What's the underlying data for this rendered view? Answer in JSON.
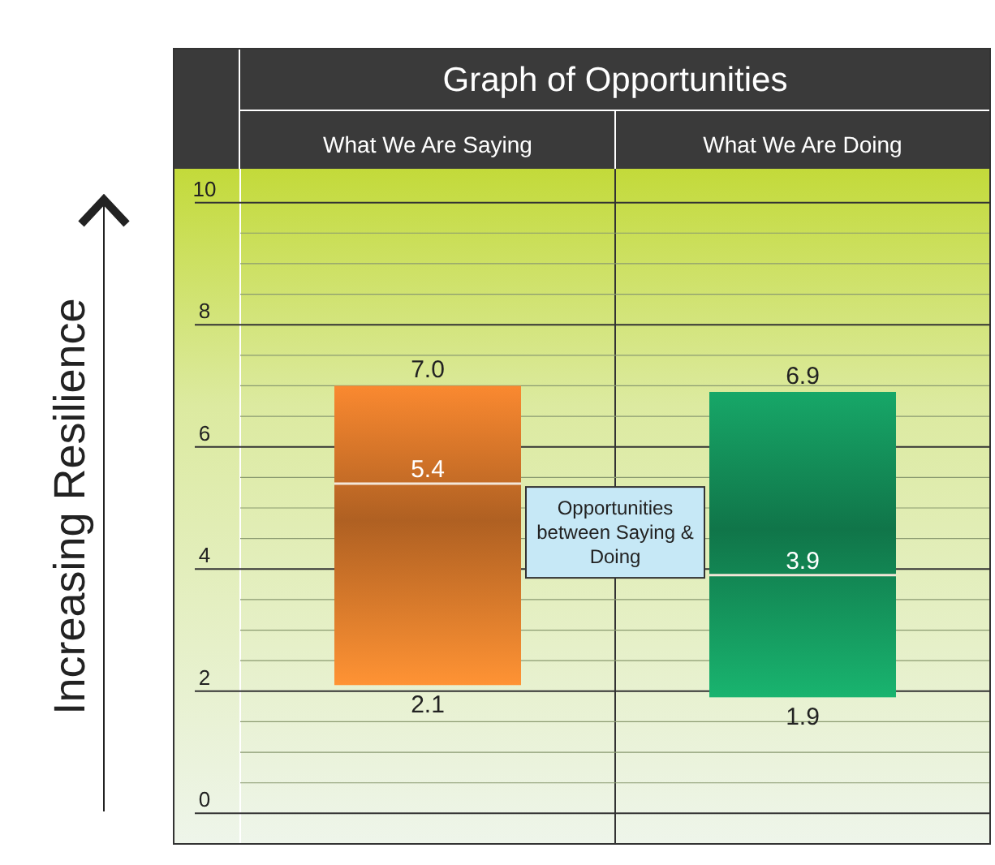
{
  "chart_data": {
    "type": "box",
    "title": "Graph of Opportunities",
    "ylabel": "Increasing Resilience",
    "categories": [
      "What We Are Saying",
      "What We Are Doing"
    ],
    "boxes": [
      {
        "low": 2.1,
        "q1": 2.1,
        "median": 5.4,
        "q3": 7.0,
        "high": 7.0
      },
      {
        "low": 1.9,
        "q1": 1.9,
        "median": 3.9,
        "q3": 6.9,
        "high": 6.9
      }
    ],
    "value_labels": [
      [
        "2.1",
        "5.4",
        "7.0"
      ],
      [
        "1.9",
        "3.9",
        "6.9"
      ]
    ],
    "colors": [
      "#d9772a",
      "#14915a"
    ],
    "ylim": [
      -0.5,
      10.5
    ],
    "yticks": [
      0,
      {
        "value": 0.5,
        "label": null
      },
      {
        "value": 1,
        "label": null
      },
      {
        "value": 1.5,
        "label": null
      },
      2,
      {
        "value": 2.5,
        "label": null
      },
      {
        "value": 3,
        "label": null
      },
      {
        "value": 3.5,
        "label": null
      },
      4,
      {
        "value": 4.5,
        "label": null
      },
      {
        "value": 5,
        "label": null
      },
      {
        "value": 5.5,
        "label": null
      },
      6,
      {
        "value": 6.5,
        "label": null
      },
      {
        "value": 7,
        "label": null
      },
      {
        "value": 7.5,
        "label": null
      },
      8,
      {
        "value": 8.5,
        "label": null
      },
      {
        "value": 9,
        "label": null
      },
      {
        "value": 9.5,
        "label": null
      },
      10
    ],
    "grid": true,
    "annotations": [
      "Opportunities between Saying & Doing"
    ]
  }
}
